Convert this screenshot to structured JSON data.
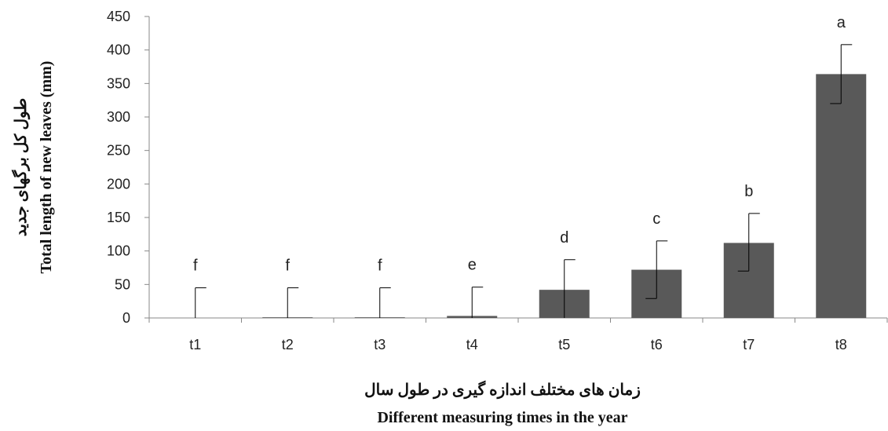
{
  "chart_data": {
    "type": "bar",
    "categories": [
      "t1",
      "t2",
      "t3",
      "t4",
      "t5",
      "t6",
      "t7",
      "t8"
    ],
    "values": [
      0,
      1,
      1,
      3,
      42,
      72,
      112,
      364
    ],
    "error_upper": [
      45,
      45,
      45,
      46,
      87,
      115,
      156,
      408
    ],
    "error_lower": [
      0,
      0,
      0,
      0,
      0,
      29,
      70,
      320
    ],
    "letters": [
      "f",
      "f",
      "f",
      "e",
      "d",
      "c",
      "b",
      "a"
    ],
    "xlabel": [
      "زمان های مختلف اندازه گیری در طول سال",
      "Different measuring times in the year"
    ],
    "ylabel": [
      "طول کل برگهای جدید",
      "Total length of new leaves (mm)"
    ],
    "ylim": [
      0,
      450
    ],
    "yticks": [
      0,
      50,
      100,
      150,
      200,
      250,
      300,
      350,
      400,
      450
    ],
    "grid": false,
    "bar_color": "#595959"
  }
}
